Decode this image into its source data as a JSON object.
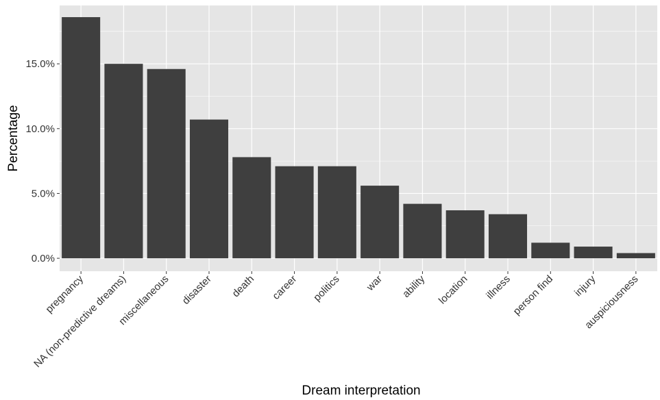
{
  "chart_data": {
    "type": "bar",
    "title": "",
    "xlabel": "Dream interpretation",
    "ylabel": "Percentage",
    "categories": [
      "pregnancy",
      "NA (non-predictive dreams)",
      "miscellaneous",
      "disaster",
      "death",
      "career",
      "politics",
      "war",
      "ability",
      "location",
      "illness",
      "person find",
      "injury",
      "auspiciousness"
    ],
    "values": [
      18.6,
      15.0,
      14.6,
      10.7,
      7.8,
      7.1,
      7.1,
      5.6,
      4.2,
      3.7,
      3.4,
      1.2,
      0.9,
      0.4
    ],
    "ylim": [
      -1.0,
      19.5
    ],
    "yticks": [
      0,
      5,
      10,
      15
    ],
    "ytick_labels": [
      "0.0%",
      "5.0%",
      "10.0%",
      "15.0%"
    ],
    "grid": true,
    "bar_color": "#3f3f3f",
    "panel_color": "#e5e5e5",
    "grid_color": "#ffffff"
  }
}
